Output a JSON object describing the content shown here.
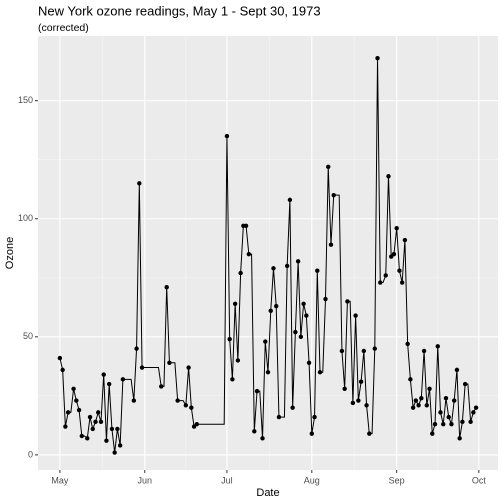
{
  "chart_data": {
    "type": "line",
    "title": "New York ozone readings, May 1 - Sept 30, 1973",
    "subtitle": "(corrected)",
    "x_label": "Date",
    "y_label": "Ozone",
    "x": [
      "1973-05-01",
      "1973-05-02",
      "1973-05-03",
      "1973-05-04",
      "1973-05-05",
      "1973-05-06",
      "1973-05-07",
      "1973-05-08",
      "1973-05-09",
      "1973-05-10",
      "1973-05-11",
      "1973-05-12",
      "1973-05-13",
      "1973-05-14",
      "1973-05-15",
      "1973-05-16",
      "1973-05-17",
      "1973-05-18",
      "1973-05-19",
      "1973-05-20",
      "1973-05-21",
      "1973-05-22",
      "1973-05-23",
      "1973-05-24",
      "1973-05-25",
      "1973-05-26",
      "1973-05-27",
      "1973-05-28",
      "1973-05-29",
      "1973-05-30",
      "1973-05-31",
      "1973-06-01",
      "1973-06-02",
      "1973-06-03",
      "1973-06-04",
      "1973-06-05",
      "1973-06-06",
      "1973-06-07",
      "1973-06-08",
      "1973-06-09",
      "1973-06-10",
      "1973-06-11",
      "1973-06-12",
      "1973-06-13",
      "1973-06-14",
      "1973-06-15",
      "1973-06-16",
      "1973-06-17",
      "1973-06-18",
      "1973-06-19",
      "1973-06-20",
      "1973-06-21",
      "1973-06-22",
      "1973-06-23",
      "1973-06-24",
      "1973-06-25",
      "1973-06-26",
      "1973-06-27",
      "1973-06-28",
      "1973-06-29",
      "1973-06-30",
      "1973-07-01",
      "1973-07-02",
      "1973-07-03",
      "1973-07-04",
      "1973-07-05",
      "1973-07-06",
      "1973-07-07",
      "1973-07-08",
      "1973-07-09",
      "1973-07-10",
      "1973-07-11",
      "1973-07-12",
      "1973-07-13",
      "1973-07-14",
      "1973-07-15",
      "1973-07-16",
      "1973-07-17",
      "1973-07-18",
      "1973-07-19",
      "1973-07-20",
      "1973-07-21",
      "1973-07-22",
      "1973-07-23",
      "1973-07-24",
      "1973-07-25",
      "1973-07-26",
      "1973-07-27",
      "1973-07-28",
      "1973-07-29",
      "1973-07-30",
      "1973-07-31",
      "1973-08-01",
      "1973-08-02",
      "1973-08-03",
      "1973-08-04",
      "1973-08-05",
      "1973-08-06",
      "1973-08-07",
      "1973-08-08",
      "1973-08-09",
      "1973-08-10",
      "1973-08-11",
      "1973-08-12",
      "1973-08-13",
      "1973-08-14",
      "1973-08-15",
      "1973-08-16",
      "1973-08-17",
      "1973-08-18",
      "1973-08-19",
      "1973-08-20",
      "1973-08-21",
      "1973-08-22",
      "1973-08-23",
      "1973-08-24",
      "1973-08-25",
      "1973-08-26",
      "1973-08-27",
      "1973-08-28",
      "1973-08-29",
      "1973-08-30",
      "1973-08-31",
      "1973-09-01",
      "1973-09-02",
      "1973-09-03",
      "1973-09-04",
      "1973-09-05",
      "1973-09-06",
      "1973-09-07",
      "1973-09-08",
      "1973-09-09",
      "1973-09-10",
      "1973-09-11",
      "1973-09-12",
      "1973-09-13",
      "1973-09-14",
      "1973-09-15",
      "1973-09-16",
      "1973-09-17",
      "1973-09-18",
      "1973-09-19",
      "1973-09-20",
      "1973-09-21",
      "1973-09-22",
      "1973-09-23",
      "1973-09-24",
      "1973-09-25",
      "1973-09-26",
      "1973-09-27",
      "1973-09-28",
      "1973-09-29",
      "1973-09-30"
    ],
    "values": [
      41,
      36,
      12,
      18,
      null,
      28,
      23,
      19,
      8,
      null,
      7,
      16,
      11,
      14,
      18,
      14,
      34,
      6,
      30,
      11,
      1,
      11,
      4,
      32,
      null,
      null,
      null,
      23,
      45,
      115,
      37,
      null,
      null,
      null,
      null,
      null,
      null,
      29,
      null,
      71,
      39,
      null,
      null,
      23,
      null,
      null,
      21,
      37,
      20,
      12,
      13,
      null,
      null,
      null,
      null,
      null,
      null,
      null,
      null,
      null,
      null,
      135,
      49,
      32,
      64,
      40,
      77,
      97,
      97,
      85,
      null,
      10,
      27,
      null,
      7,
      48,
      35,
      61,
      79,
      63,
      16,
      null,
      null,
      80,
      108,
      20,
      52,
      82,
      50,
      64,
      59,
      39,
      9,
      16,
      78,
      35,
      null,
      66,
      122,
      89,
      110,
      null,
      null,
      44,
      28,
      65,
      null,
      22,
      59,
      23,
      31,
      44,
      21,
      9,
      null,
      45,
      168,
      73,
      null,
      76,
      118,
      84,
      85,
      96,
      78,
      73,
      91,
      47,
      32,
      20,
      23,
      21,
      24,
      44,
      21,
      28,
      9,
      13,
      46,
      18,
      13,
      24,
      16,
      13,
      23,
      36,
      7,
      14,
      30,
      null,
      14,
      18,
      20
    ],
    "color": "#000000",
    "xlim": [
      "1973-04-23",
      "1973-10-08"
    ],
    "xticks": [
      {
        "value": "1973-05-01",
        "label": "May"
      },
      {
        "value": "1973-06-01",
        "label": "Jun"
      },
      {
        "value": "1973-07-01",
        "label": "Jul"
      },
      {
        "value": "1973-08-01",
        "label": "Aug"
      },
      {
        "value": "1973-09-01",
        "label": "Sep"
      },
      {
        "value": "1973-10-01",
        "label": "Oct"
      }
    ],
    "ylim": [
      -6.4,
      177.4
    ],
    "yticks": [
      0,
      50,
      100,
      150
    ],
    "grid": true
  }
}
